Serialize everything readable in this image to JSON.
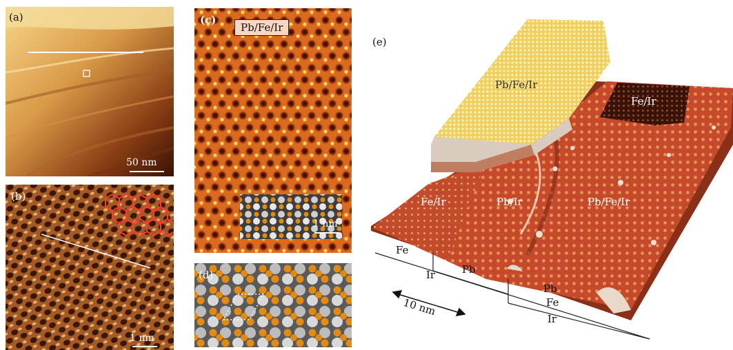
{
  "panels": {
    "a": {
      "label": "(a)",
      "scale": "50 nm"
    },
    "b": {
      "label": "(b)",
      "scale": "1 nm"
    },
    "c": {
      "label": "(c)",
      "tag": "Pb/Fe/Ir",
      "scale": "1 nm"
    },
    "d": {
      "label": "(d)"
    },
    "e": {
      "label": "(e)",
      "regions": {
        "top_left": "Pb/Fe/Ir",
        "top_right": "Fe/Ir",
        "front_left": "Fe/Ir",
        "front_mid": "Pb/Ir",
        "front_right": "Pb/Fe/Ir"
      },
      "layers_left": {
        "fe": "Fe",
        "ir": "Ir",
        "pb": "Pb"
      },
      "layers_right": {
        "pb": "Pb",
        "fe": "Fe",
        "ir": "Ir"
      },
      "distance": "10 nm"
    }
  },
  "colors": {
    "stm_dark": "#3a0f04",
    "stm_mid": "#c0521c",
    "stm_light": "#f3c765",
    "fe_atom": "#e08a16",
    "ir_atom": "#9a9a9a",
    "overlay_red": "#ff3b2f"
  }
}
